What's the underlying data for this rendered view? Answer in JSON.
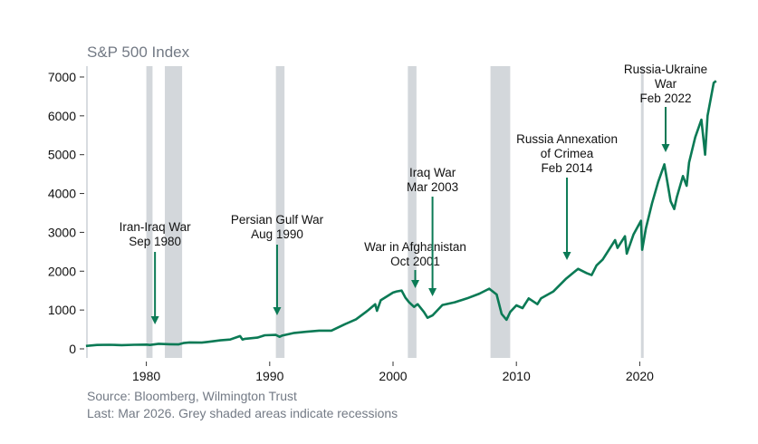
{
  "chart_data": {
    "type": "line",
    "title": "S&P 500 Index",
    "xlabel": "",
    "ylabel": "",
    "xlim": [
      1975.1,
      2026.8
    ],
    "ylim": [
      0,
      7000
    ],
    "xticks": [
      1980,
      1990,
      2000,
      2010,
      2020
    ],
    "yticks": [
      0,
      1000,
      2000,
      3000,
      4000,
      5000,
      6000,
      7000
    ],
    "grid": false,
    "colors": {
      "line": "#0b7a55",
      "recession": "#d3d7db",
      "title": "#737a85"
    },
    "series": [
      {
        "name": "S&P 500",
        "x": [
          1975.1,
          1976,
          1977,
          1978,
          1979,
          1980,
          1980.3,
          1981,
          1981.9,
          1982.6,
          1983,
          1983.5,
          1984.5,
          1985,
          1986,
          1986.8,
          1987.6,
          1987.8,
          1988,
          1989,
          1989.6,
          1990.5,
          1990.8,
          1991,
          1992,
          1993,
          1994,
          1995,
          1996,
          1997,
          1997.8,
          1998,
          1998.55,
          1998.7,
          1999,
          1999.5,
          2000,
          2000.3,
          2000.7,
          2001,
          2001.3,
          2001.7,
          2002,
          2002.5,
          2002.8,
          2003.2,
          2004,
          2005,
          2006,
          2007,
          2007.8,
          2008.4,
          2008.8,
          2009.2,
          2009.5,
          2010,
          2010.5,
          2011,
          2011.7,
          2012,
          2013,
          2014,
          2015,
          2015.7,
          2016.1,
          2016.5,
          2017,
          2018,
          2018.2,
          2018.8,
          2018.95,
          2019.5,
          2020.1,
          2020.2,
          2020.5,
          2021,
          2021.5,
          2022,
          2022.5,
          2022.8,
          2023,
          2023.5,
          2023.8,
          2024,
          2024.5,
          2025,
          2025.3,
          2025.5,
          2026,
          2026.2
        ],
        "values": [
          75,
          100,
          105,
          95,
          105,
          110,
          100,
          130,
          120,
          115,
          150,
          165,
          160,
          180,
          220,
          240,
          330,
          240,
          260,
          290,
          350,
          360,
          310,
          340,
          410,
          440,
          470,
          470,
          620,
          760,
          950,
          1000,
          1150,
          980,
          1250,
          1350,
          1450,
          1480,
          1500,
          1320,
          1200,
          1080,
          1150,
          950,
          800,
          860,
          1130,
          1200,
          1300,
          1420,
          1550,
          1400,
          900,
          750,
          950,
          1120,
          1050,
          1300,
          1150,
          1300,
          1480,
          1800,
          2060,
          1950,
          1900,
          2150,
          2300,
          2800,
          2600,
          2900,
          2450,
          2950,
          3300,
          2550,
          3100,
          3750,
          4300,
          4750,
          3800,
          3600,
          3900,
          4450,
          4200,
          4800,
          5450,
          5900,
          5000,
          6000,
          6850,
          6900
        ]
      }
    ],
    "recessions": [
      [
        1980.0,
        1980.5
      ],
      [
        1981.5,
        1982.9
      ],
      [
        1990.5,
        1991.2
      ],
      [
        2001.2,
        2001.9
      ],
      [
        2007.9,
        2009.5
      ],
      [
        2020.1,
        2020.3
      ]
    ],
    "annotations": [
      {
        "date": 1980.7,
        "lines": [
          "Iran-Iraq War",
          "Sep 1980"
        ]
      },
      {
        "date": 1990.6,
        "lines": [
          "Persian Gulf War",
          "Aug 1990"
        ]
      },
      {
        "date": 2001.8,
        "lines": [
          "War in Afghanistan",
          "Oct 2001"
        ]
      },
      {
        "date": 2003.2,
        "lines": [
          "Iraq War",
          "Mar 2003"
        ]
      },
      {
        "date": 2014.1,
        "lines": [
          "Russia Annexation",
          "of Crimea",
          "Feb 2014"
        ]
      },
      {
        "date": 2022.1,
        "lines": [
          "Russia-Ukraine",
          "War",
          "Feb 2022"
        ]
      }
    ]
  },
  "footer": {
    "source": "Source: Bloomberg, Wilmington Trust",
    "note": "Last: Mar 2026. Grey shaded areas indicate recessions"
  }
}
